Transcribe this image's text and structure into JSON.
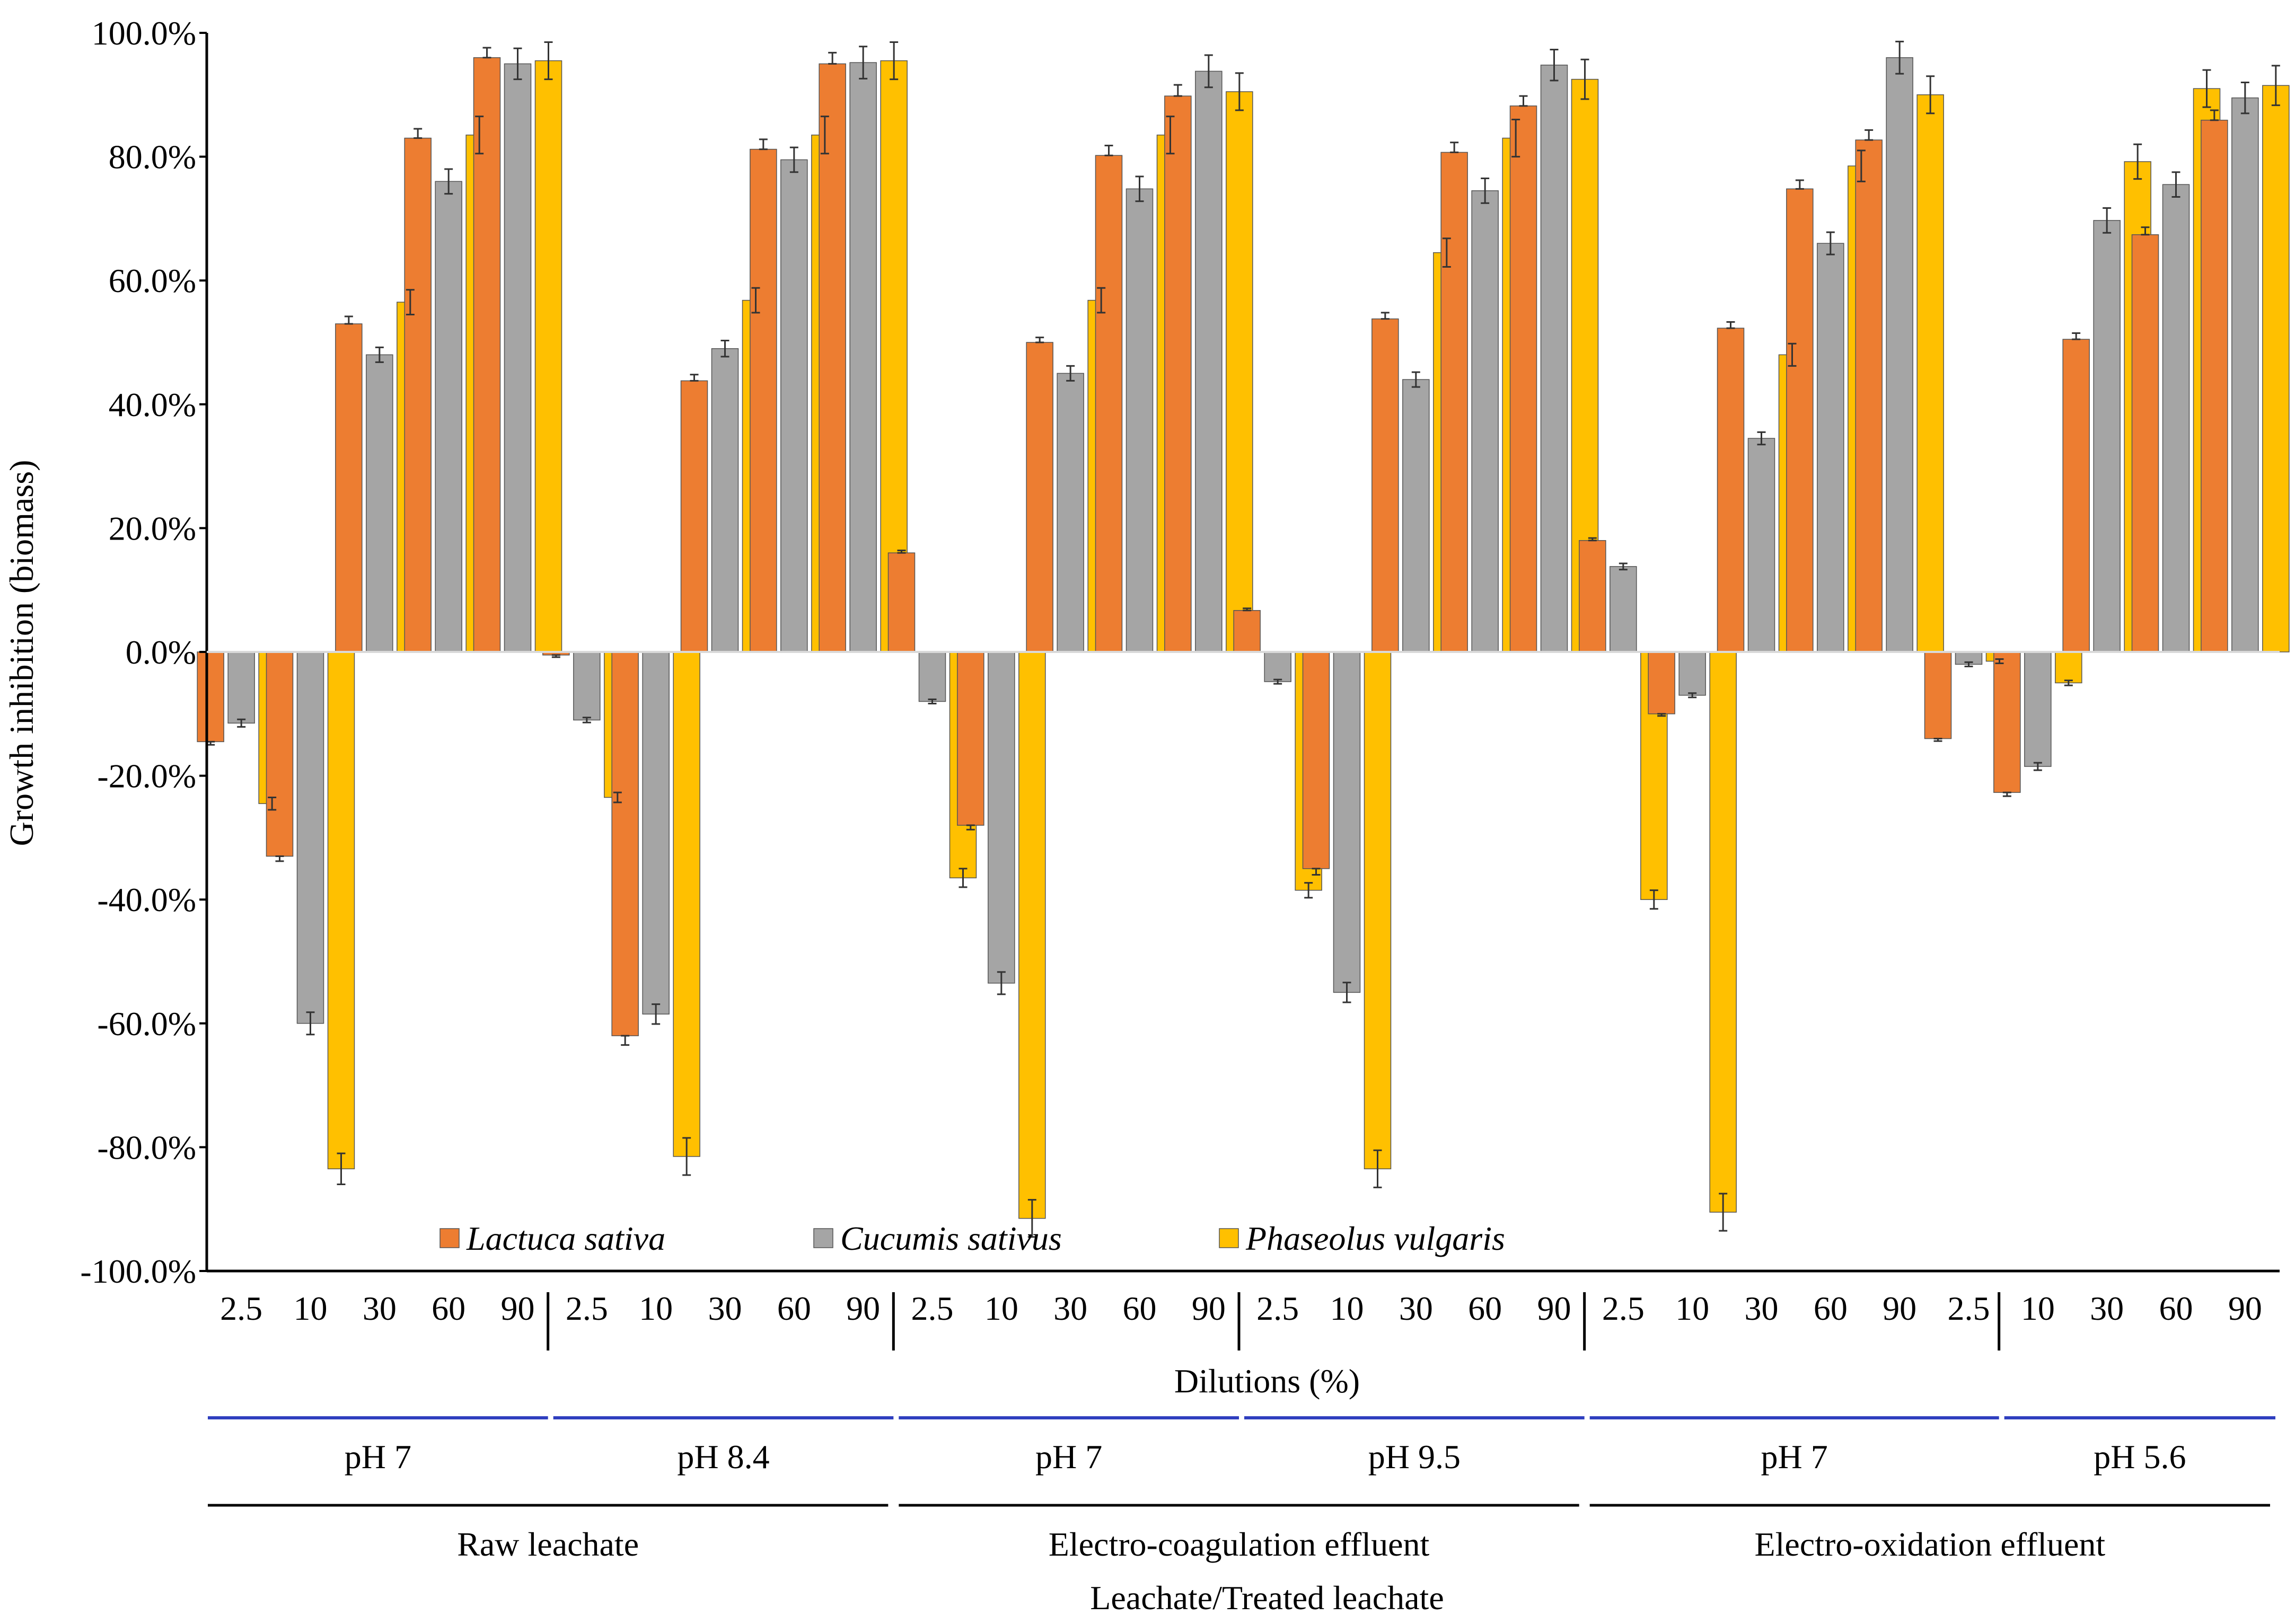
{
  "chart_data": {
    "type": "bar",
    "ylabel": "Growth inhibition (biomass)",
    "xlabel": "Dilutions (%)",
    "bottom_label": "Leachate/Treated leachate",
    "ylim": [
      -100,
      100
    ],
    "yticks": [
      -100,
      -80,
      -60,
      -40,
      -20,
      0,
      20,
      40,
      60,
      80,
      100
    ],
    "ytick_labels": [
      "-100.0%",
      "-80.0%",
      "-60.0%",
      "-40.0%",
      "-20.0%",
      "0.0%",
      "20.0%",
      "40.0%",
      "60.0%",
      "80.0%",
      "100.0%"
    ],
    "grid": false,
    "legend_position": "bottom-center",
    "colors": [
      "#ED7D31",
      "#A5A5A5",
      "#FFC000"
    ],
    "categories": [
      "2.5",
      "10",
      "30",
      "60",
      "90",
      "2.5",
      "10",
      "30",
      "60",
      "90",
      "2.5",
      "10",
      "30",
      "60",
      "90",
      "2.5",
      "10",
      "30",
      "60",
      "90",
      "2.5",
      "10",
      "30",
      "60",
      "90",
      "2.5",
      "10",
      "30",
      "60",
      "90"
    ],
    "series": [
      {
        "name": "Lactuca sativa",
        "values": [
          -14.5,
          -33,
          53,
          83,
          96,
          -0.5,
          -62,
          43.8,
          81.2,
          95,
          16,
          -28,
          50,
          80.2,
          89.8,
          6.7,
          -35,
          53.8,
          80.7,
          88.2,
          18,
          -10,
          52.3,
          74.8,
          82.7,
          -14,
          -22.7,
          50.5,
          67.4,
          85.9
        ],
        "errors": [
          0.5,
          0.8,
          1.2,
          1.5,
          1.6,
          0.2,
          1.5,
          1,
          1.6,
          1.8,
          0.4,
          0.7,
          0.8,
          1.6,
          1.8,
          0.2,
          1,
          1,
          1.6,
          1.6,
          0.4,
          0.3,
          1,
          1.4,
          1.6,
          0.4,
          0.6,
          1,
          1.2,
          1.6
        ],
        "err_style": "bottom"
      },
      {
        "name": "Cucumis sativus",
        "values": [
          -11.5,
          -60,
          48,
          76,
          95,
          -11,
          -58.5,
          49,
          79.5,
          95.2,
          -8,
          -53.5,
          45,
          74.8,
          93.8,
          -4.8,
          -55,
          44,
          74.5,
          94.8,
          13.8,
          -7,
          34.5,
          66,
          96,
          -2,
          -18.5,
          69.7,
          75.5,
          89.5
        ],
        "errors": [
          0.6,
          1.8,
          1.2,
          2,
          2.5,
          0.4,
          1.6,
          1.3,
          2,
          2.6,
          0.3,
          1.8,
          1.2,
          2,
          2.6,
          0.3,
          1.6,
          1.2,
          2,
          2.5,
          0.5,
          0.3,
          1,
          1.8,
          2.6,
          0.1,
          0.6,
          2,
          2,
          2.5
        ],
        "err_style": "both"
      },
      {
        "name": "Phaseolus vulgaris",
        "values": [
          -24.5,
          -83.5,
          56.5,
          83.5,
          95.5,
          -23.5,
          -81.5,
          56.8,
          83.5,
          95.5,
          -36.5,
          -91.5,
          56.8,
          83.5,
          90.5,
          -38.5,
          -83.5,
          64.5,
          83,
          92.5,
          -40,
          -90.5,
          48,
          78.5,
          90,
          -1.5,
          -5,
          79.2,
          91,
          91.5
        ],
        "errors": [
          1,
          2.5,
          2,
          3,
          3,
          0.8,
          3,
          2,
          3,
          3,
          1.5,
          3,
          2,
          3,
          3,
          1.2,
          3,
          2.3,
          3,
          3.2,
          1.5,
          3,
          1.8,
          2.5,
          3,
          0.1,
          0.4,
          2.8,
          3,
          3.2
        ],
        "err_style": "both"
      }
    ],
    "ph_groups": [
      {
        "label": "pH 7",
        "span": [
          0,
          4
        ]
      },
      {
        "label": "pH 8.4",
        "span": [
          5,
          9
        ]
      },
      {
        "label": "pH 7",
        "span": [
          10,
          14
        ]
      },
      {
        "label": "pH 9.5",
        "span": [
          15,
          19
        ]
      },
      {
        "label": "pH 7",
        "span": [
          20,
          25
        ]
      },
      {
        "label": "pH 5.6",
        "span": [
          26,
          29
        ]
      }
    ],
    "source_groups": [
      {
        "label": "Raw leachate",
        "span": [
          0,
          9
        ]
      },
      {
        "label": "Electro-coagulation effluent",
        "span": [
          10,
          19
        ]
      },
      {
        "label": "Electro-oxidation effluent",
        "span": [
          20,
          29
        ]
      }
    ]
  }
}
